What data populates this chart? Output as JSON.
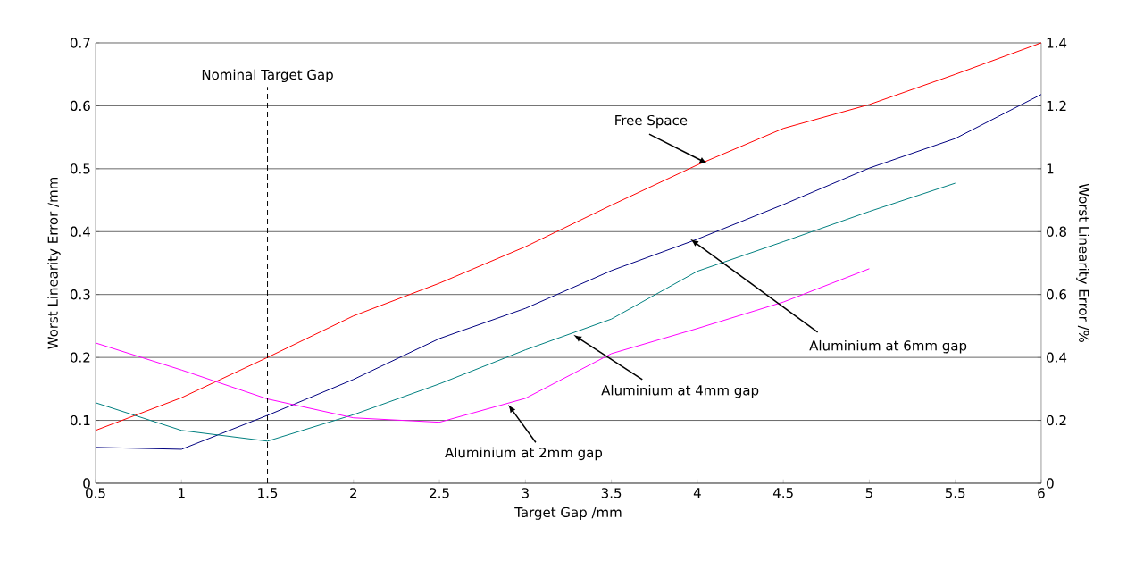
{
  "chart_data": {
    "type": "line",
    "xlabel": "Target Gap /mm",
    "ylabel": "Worst Linearity Error /mm",
    "y2label": "Worst Linearity Error /%",
    "xlim": [
      0.5,
      6
    ],
    "xticks": [
      0.5,
      1,
      1.5,
      2,
      2.5,
      3,
      3.5,
      4,
      4.5,
      5,
      5.5,
      6
    ],
    "ylim": [
      0,
      0.7
    ],
    "yticks": [
      0,
      0.1,
      0.2,
      0.3,
      0.4,
      0.5,
      0.6,
      0.7
    ],
    "y2lim": [
      0,
      1.4
    ],
    "y2ticks": [
      0,
      0.2,
      0.4,
      0.6,
      0.8,
      1,
      1.2,
      1.4
    ],
    "grid": "y",
    "marker": "none",
    "line_style": "solid",
    "series": [
      {
        "color": "#ff0000",
        "x": [
          0.5,
          1,
          1.5,
          2,
          2.5,
          3,
          3.5,
          4,
          4.5,
          5,
          5.5,
          6
        ],
        "values": [
          0.084,
          0.136,
          0.2,
          0.266,
          0.318,
          0.376,
          0.442,
          0.506,
          0.564,
          0.602,
          0.65,
          0.7
        ]
      },
      {
        "color": "#000080",
        "x": [
          0.5,
          1,
          1.5,
          2,
          2.5,
          3,
          3.5,
          4,
          4.5,
          5,
          5.5,
          6
        ],
        "values": [
          0.057,
          0.054,
          0.108,
          0.165,
          0.23,
          0.278,
          0.338,
          0.388,
          0.443,
          0.501,
          0.548,
          0.618
        ]
      },
      {
        "color": "#008080",
        "x": [
          0.5,
          1,
          1.5,
          2,
          2.5,
          3,
          3.5,
          4,
          4.5,
          5,
          5.5
        ],
        "values": [
          0.128,
          0.084,
          0.067,
          0.109,
          0.158,
          0.212,
          0.261,
          0.337,
          0.384,
          0.432,
          0.477
        ]
      },
      {
        "color": "#ff00ff",
        "x": [
          0.5,
          1,
          1.5,
          2,
          2.5,
          3,
          3.5,
          4,
          4.5,
          5
        ],
        "values": [
          0.223,
          0.18,
          0.134,
          0.104,
          0.097,
          0.135,
          0.206,
          0.246,
          0.288,
          0.341
        ]
      }
    ],
    "ref_lines": [
      {
        "axis": "x",
        "value": 1.5,
        "label": "Nominal Target Gap",
        "line_style": "dashed"
      }
    ],
    "annotations": [
      {
        "text": "Free Space",
        "x": 4.06,
        "y": 0.508
      },
      {
        "text": "Aluminium at 6mm gap",
        "x": 3.96,
        "y": 0.388
      },
      {
        "text": "Aluminium at 4mm gap",
        "x": 3.28,
        "y": 0.236
      },
      {
        "text": "Aluminium at 2mm gap",
        "x": 2.9,
        "y": 0.125
      }
    ]
  }
}
